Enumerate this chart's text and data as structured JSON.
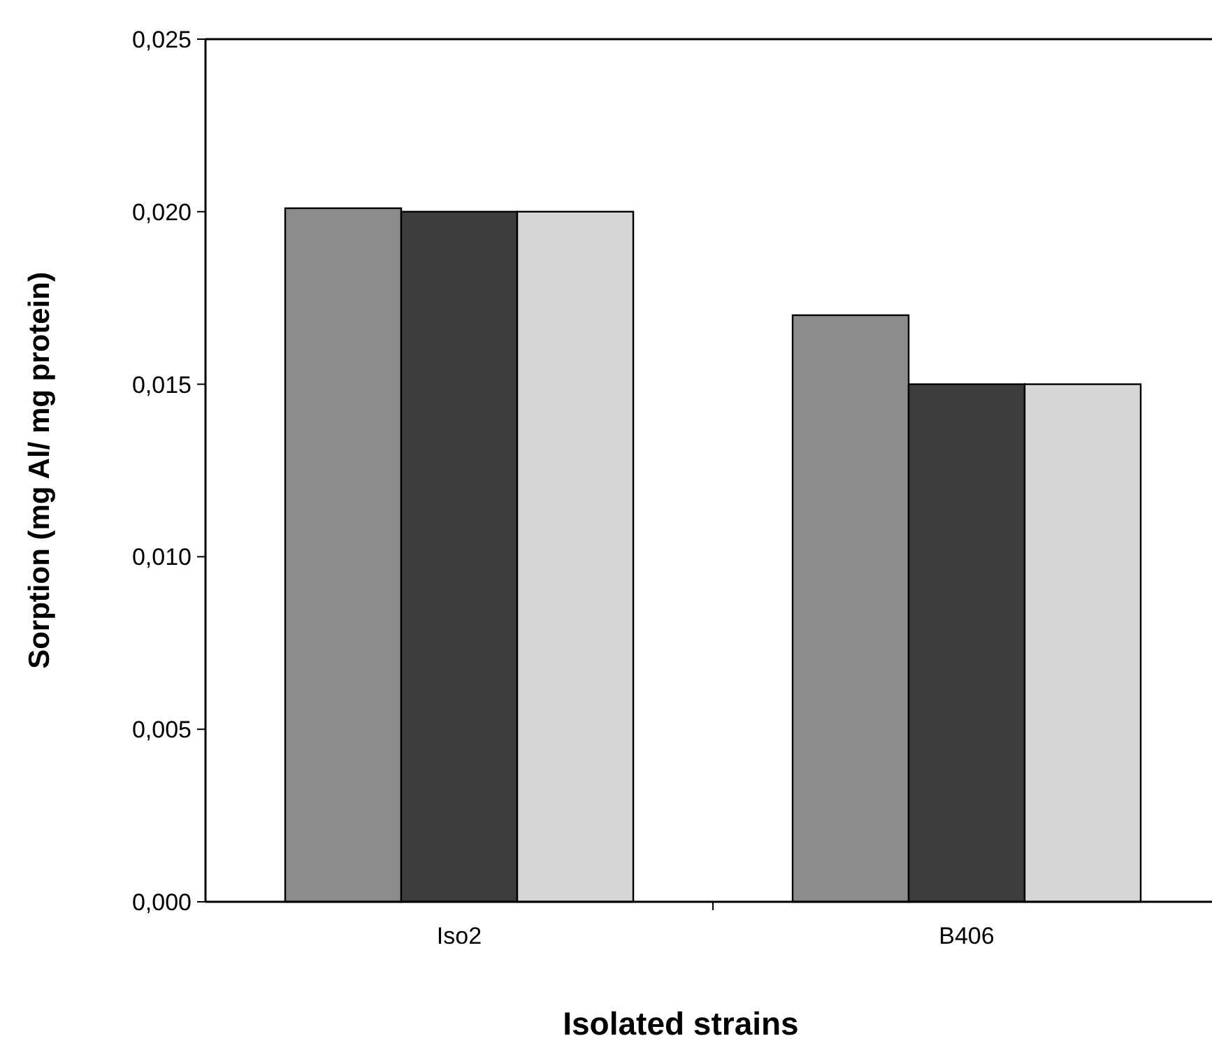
{
  "chart_data": {
    "type": "bar",
    "xlabel": "Isolated strains",
    "ylabel": "Sorption (mg Al/ mg protein)",
    "categories": [
      "Iso2",
      "B406"
    ],
    "series": [
      {
        "color": "#8c8c8c",
        "values": [
          0.0201,
          0.017
        ]
      },
      {
        "color": "#3c3c3c",
        "values": [
          0.02,
          0.015
        ]
      },
      {
        "color": "#d6d6d6",
        "values": [
          0.02,
          0.015
        ]
      }
    ],
    "ylim": [
      0,
      0.025
    ],
    "yticks": [
      {
        "value": 0,
        "label": "0,000"
      },
      {
        "value": 0.005,
        "label": "0,005"
      },
      {
        "value": 0.01,
        "label": "0,010"
      },
      {
        "value": 0.015,
        "label": "0,015"
      },
      {
        "value": 0.02,
        "label": "0,020"
      },
      {
        "value": 0.025,
        "label": "0,025"
      }
    ]
  }
}
